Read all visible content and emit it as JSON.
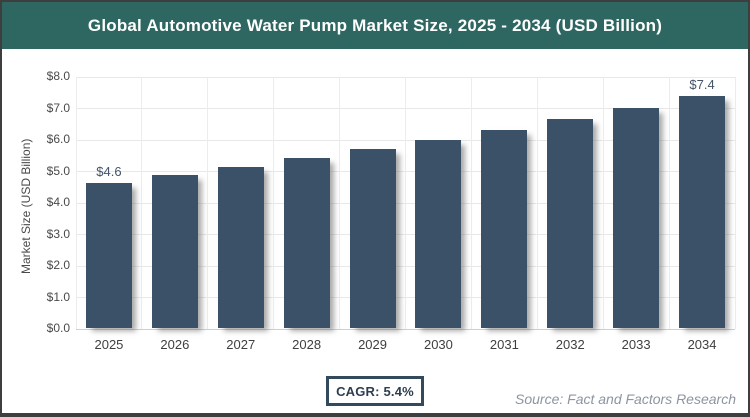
{
  "header": {
    "title": "Global Automotive Water Pump Market Size, 2025 - 2034 (USD Billion)"
  },
  "chart_data": {
    "type": "bar",
    "title": "Global Automotive Water Pump Market Size, 2025 - 2034 (USD Billion)",
    "categories": [
      "2025",
      "2026",
      "2027",
      "2028",
      "2029",
      "2030",
      "2031",
      "2032",
      "2033",
      "2034"
    ],
    "values": [
      4.6,
      4.85,
      5.11,
      5.39,
      5.68,
      5.98,
      6.3,
      6.64,
      7.0,
      7.38
    ],
    "annotations": [
      {
        "index": 0,
        "text": "$4.6"
      },
      {
        "index": 9,
        "text": "$7.4"
      }
    ],
    "ylabel": "Market Size (USD Billion)",
    "xlabel": "",
    "ylim": [
      0,
      8
    ],
    "ytick_step": 1,
    "ytick_labels": [
      "$0.0",
      "$1.0",
      "$2.0",
      "$3.0",
      "$4.0",
      "$5.0",
      "$6.0",
      "$7.0",
      "$8.0"
    ],
    "grid": true,
    "legend": false,
    "bar_color": "#3b5168"
  },
  "footer": {
    "cagr_label": "CAGR: 5.4%",
    "source": "Source: Fact and Factors Research"
  },
  "colors": {
    "header_bg": "#2e6761",
    "frame_border": "#3e3e3e",
    "bar": "#3b5168",
    "annotation_text": "#44546a",
    "cagr_border": "#33495c",
    "source_text": "#8d95a0"
  }
}
